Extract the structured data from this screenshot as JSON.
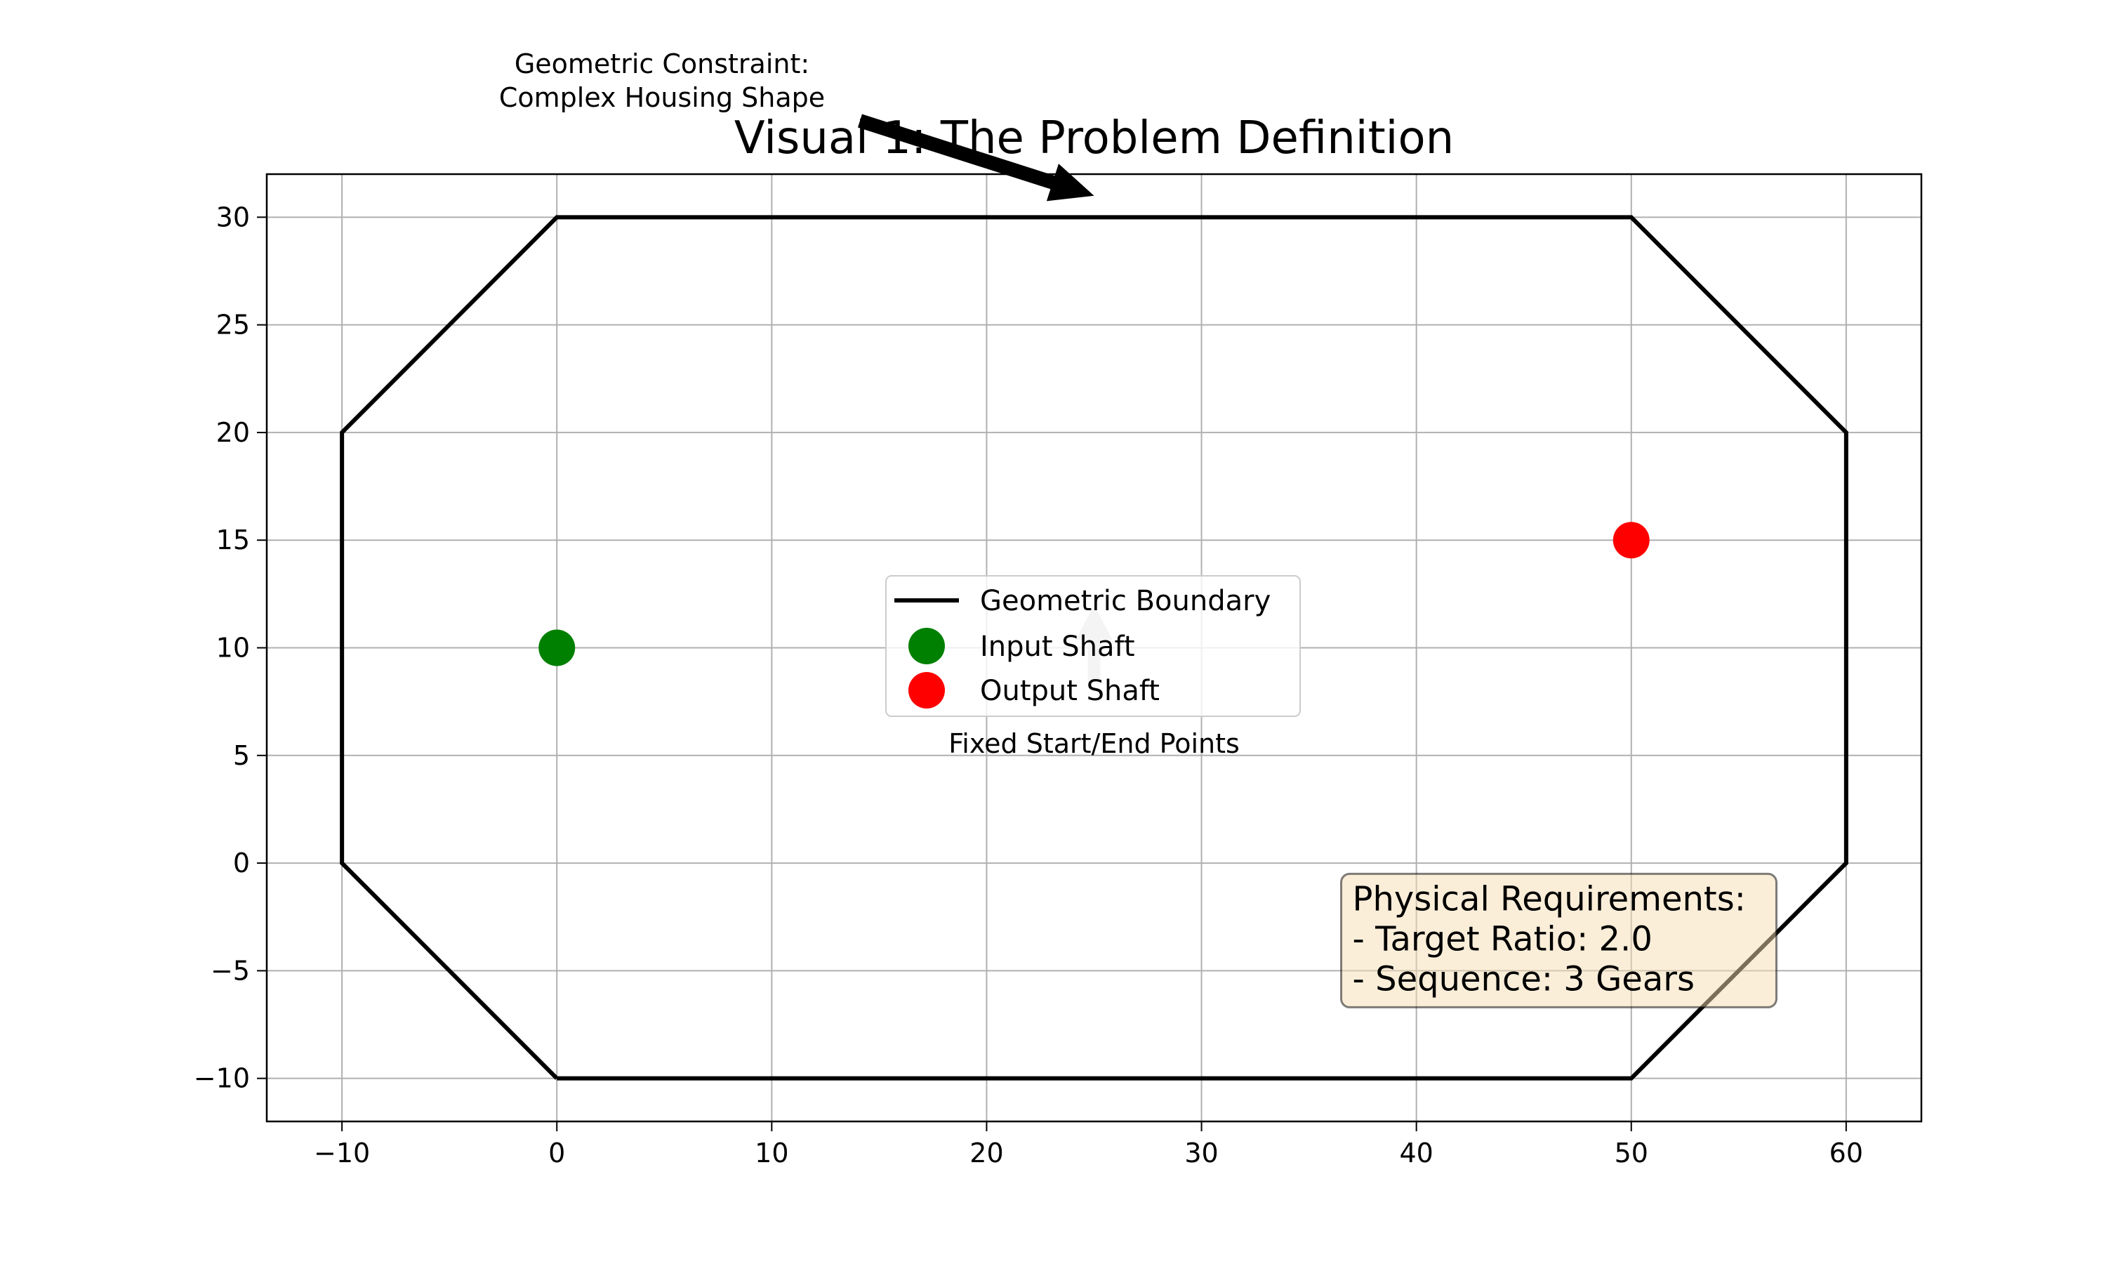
{
  "chart_data": {
    "type": "scatter",
    "title": "Visual 1: The Problem Definition",
    "xlabel": "",
    "ylabel": "",
    "xlim": [
      -13.5,
      63.5
    ],
    "ylim": [
      -12,
      32
    ],
    "xticks": [
      -10,
      0,
      10,
      20,
      30,
      40,
      50,
      60
    ],
    "yticks": [
      -10,
      -5,
      0,
      5,
      10,
      15,
      20,
      25,
      30
    ],
    "xtick_labels": [
      "−10",
      "0",
      "10",
      "20",
      "30",
      "40",
      "50",
      "60"
    ],
    "ytick_labels": [
      "−10",
      "−5",
      "0",
      "5",
      "10",
      "15",
      "20",
      "25",
      "30"
    ],
    "grid": true,
    "legend_position": "center",
    "series": [
      {
        "name": "Geometric Boundary",
        "kind": "line",
        "color": "#000000",
        "points": [
          [
            0,
            -10
          ],
          [
            50,
            -10
          ],
          [
            60,
            0
          ],
          [
            60,
            20
          ],
          [
            50,
            30
          ],
          [
            0,
            30
          ],
          [
            -10,
            20
          ],
          [
            -10,
            0
          ],
          [
            0,
            -10
          ]
        ]
      },
      {
        "name": "Input Shaft",
        "kind": "point",
        "color": "#008000",
        "points": [
          [
            0,
            10
          ]
        ]
      },
      {
        "name": "Output Shaft",
        "kind": "point",
        "color": "#ff0000",
        "points": [
          [
            50,
            15
          ]
        ]
      }
    ],
    "annotations": [
      {
        "lines": [
          "Geometric Constraint:",
          "Complex Housing Shape"
        ],
        "text_xy": [
          5,
          36
        ],
        "arrow_to": [
          25,
          31
        ],
        "arrow_color": "#000000"
      },
      {
        "lines": [
          "Fixed Start/End Points"
        ],
        "text_xy": [
          25,
          5.5
        ],
        "arrow_to": [
          25,
          12
        ],
        "arrow_color": "#c8c8c8"
      }
    ],
    "text_box": {
      "lines": [
        "Physical Requirements:",
        "- Target Ratio: 2.0",
        "- Sequence: 3 Gears"
      ],
      "anchor_xy": [
        36.5,
        -0.5
      ],
      "facecolor": "#f5deb3",
      "edgecolor": "#000000"
    }
  }
}
